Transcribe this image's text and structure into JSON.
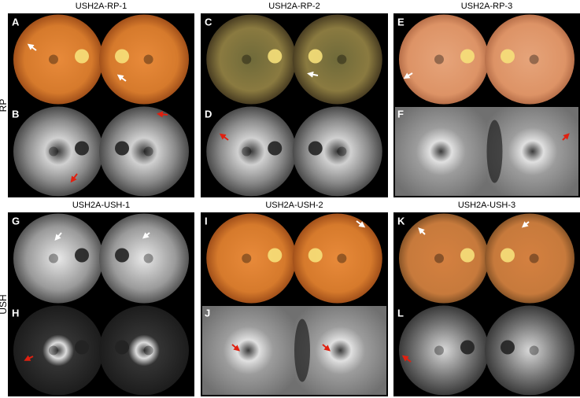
{
  "groups": [
    {
      "title": "USH2A-RP-1",
      "letters": [
        "A",
        "B"
      ]
    },
    {
      "title": "USH2A-RP-2",
      "letters": [
        "C",
        "D"
      ]
    },
    {
      "title": "USH2A-RP-3",
      "letters": [
        "E",
        "F"
      ]
    },
    {
      "title": "USH2A-USH-1",
      "letters": [
        "G",
        "H"
      ]
    },
    {
      "title": "USH2A-USH-2",
      "letters": [
        "I",
        "J"
      ]
    },
    {
      "title": "USH2A-USH-3",
      "letters": [
        "K",
        "L"
      ]
    }
  ],
  "row_labels": [
    "RP",
    "USH"
  ]
}
